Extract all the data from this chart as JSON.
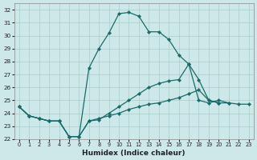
{
  "xlabel": "Humidex (Indice chaleur)",
  "bg_color": "#cce8e8",
  "grid_color": "#aacccc",
  "line_color": "#1a6b6b",
  "xlim": [
    -0.5,
    23.5
  ],
  "ylim": [
    22,
    32.5
  ],
  "xticks": [
    0,
    1,
    2,
    3,
    4,
    5,
    6,
    7,
    8,
    9,
    10,
    11,
    12,
    13,
    14,
    15,
    16,
    17,
    18,
    19,
    20,
    21,
    22,
    23
  ],
  "yticks": [
    22,
    23,
    24,
    25,
    26,
    27,
    28,
    29,
    30,
    31,
    32
  ],
  "series": [
    {
      "x": [
        0,
        1,
        2,
        3,
        4,
        5,
        6,
        7,
        8,
        9,
        10,
        11,
        12,
        13,
        14,
        15,
        16,
        17,
        18,
        19,
        20
      ],
      "y": [
        24.5,
        23.8,
        23.6,
        23.4,
        23.4,
        22.2,
        22.2,
        27.5,
        29.0,
        30.2,
        31.7,
        31.8,
        31.5,
        30.3,
        30.3,
        29.7,
        28.5,
        27.8,
        26.6,
        25.0,
        24.8
      ]
    },
    {
      "x": [
        0,
        1,
        2,
        3,
        4,
        5,
        6,
        7,
        8,
        9,
        10,
        11,
        12,
        13,
        14,
        15,
        16,
        17,
        18,
        19,
        20,
        21
      ],
      "y": [
        24.5,
        23.8,
        23.6,
        23.4,
        23.4,
        22.2,
        22.2,
        23.4,
        23.5,
        24.0,
        24.5,
        25.0,
        25.5,
        26.0,
        26.3,
        26.5,
        26.6,
        27.8,
        25.0,
        24.8,
        25.0,
        24.8
      ]
    },
    {
      "x": [
        0,
        1,
        2,
        3,
        4,
        5,
        6,
        7,
        8,
        9,
        10,
        11,
        12,
        13,
        14,
        15,
        16,
        17,
        18,
        19,
        20,
        21,
        22,
        23
      ],
      "y": [
        24.5,
        23.8,
        23.6,
        23.4,
        23.4,
        22.2,
        22.2,
        23.4,
        23.6,
        23.8,
        24.0,
        24.3,
        24.5,
        24.7,
        24.8,
        25.0,
        25.2,
        25.5,
        25.8,
        25.0,
        24.8,
        24.8,
        24.7,
        24.7
      ]
    }
  ]
}
